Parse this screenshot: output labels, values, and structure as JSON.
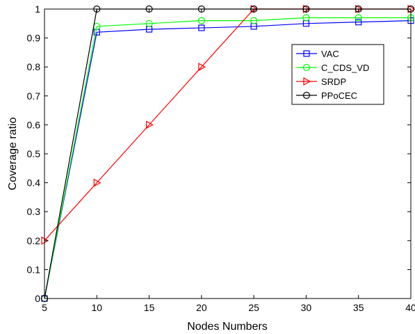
{
  "chart_data": {
    "type": "line",
    "title": "",
    "xlabel": "Nodes Numbers",
    "ylabel": "Coverage ratio",
    "xlim": [
      5,
      40
    ],
    "ylim": [
      0,
      1
    ],
    "xticks": [
      "5",
      "10",
      "15",
      "20",
      "25",
      "30",
      "35",
      "40"
    ],
    "yticks": [
      "0",
      "0.1",
      "0.2",
      "0.3",
      "0.4",
      "0.5",
      "0.6",
      "0.7",
      "0.8",
      "0.9",
      "1"
    ],
    "grid": false,
    "legend_position": "top-right",
    "x": [
      5,
      10,
      15,
      20,
      25,
      30,
      35,
      40
    ],
    "series": [
      {
        "name": "VAC",
        "color": "#0000ff",
        "marker": "square",
        "values": [
          0,
          0.92,
          0.93,
          0.935,
          0.94,
          0.95,
          0.955,
          0.96
        ]
      },
      {
        "name": "C_CDS_VD",
        "color": "#00ff00",
        "marker": "circle",
        "values": [
          0,
          0.94,
          0.95,
          0.96,
          0.96,
          0.97,
          0.97,
          0.97
        ]
      },
      {
        "name": "SRDP",
        "color": "#ff0000",
        "marker": "triangle-right",
        "values": [
          0.2,
          0.4,
          0.6,
          0.8,
          1.0,
          1.0,
          1.0,
          1.0
        ]
      },
      {
        "name": "PPoCEC",
        "color": "#000000",
        "marker": "circle",
        "values": [
          0,
          1,
          1,
          1,
          1,
          1,
          1,
          1
        ]
      }
    ]
  }
}
